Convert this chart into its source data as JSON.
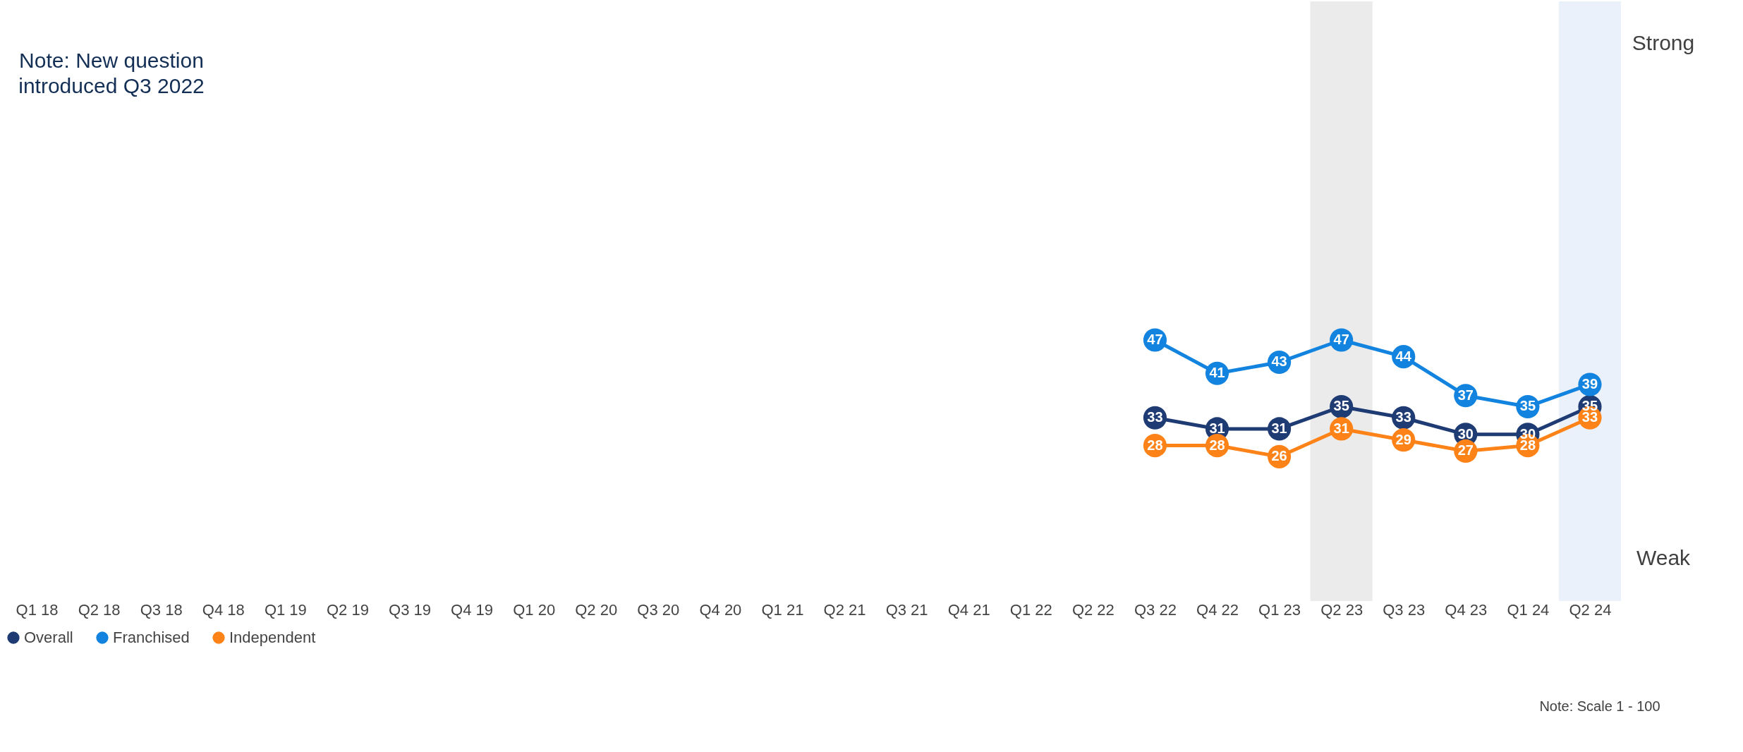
{
  "chart_data": {
    "type": "line",
    "categories": [
      "Q1 18",
      "Q2 18",
      "Q3 18",
      "Q4 18",
      "Q1 19",
      "Q2 19",
      "Q3 19",
      "Q4 19",
      "Q1 20",
      "Q2 20",
      "Q3 20",
      "Q4 20",
      "Q1 21",
      "Q2 21",
      "Q3 21",
      "Q4 21",
      "Q1 22",
      "Q2 22",
      "Q3 22",
      "Q4 22",
      "Q1 23",
      "Q2 23",
      "Q3 23",
      "Q4 23",
      "Q1 24",
      "Q2 24"
    ],
    "series": [
      {
        "name": "Overall",
        "color": "#1f3b73",
        "values": [
          null,
          null,
          null,
          null,
          null,
          null,
          null,
          null,
          null,
          null,
          null,
          null,
          null,
          null,
          null,
          null,
          null,
          null,
          33,
          31,
          31,
          35,
          33,
          30,
          30,
          35
        ]
      },
      {
        "name": "Franchised",
        "color": "#1283de",
        "values": [
          null,
          null,
          null,
          null,
          null,
          null,
          null,
          null,
          null,
          null,
          null,
          null,
          null,
          null,
          null,
          null,
          null,
          null,
          47,
          41,
          43,
          47,
          44,
          37,
          35,
          39
        ]
      },
      {
        "name": "Independent",
        "color": "#fd8319",
        "values": [
          null,
          null,
          null,
          null,
          null,
          null,
          null,
          null,
          null,
          null,
          null,
          null,
          null,
          null,
          null,
          null,
          null,
          null,
          28,
          28,
          26,
          31,
          29,
          27,
          28,
          33
        ]
      }
    ],
    "tick_labels": "x",
    "grid": false,
    "legend": "bottom",
    "marker": "circle",
    "line_style": "solid",
    "data_labels": true,
    "bands": [
      {
        "axis": "x",
        "from": "Q2 23",
        "to": "Q2 23",
        "color": "#ebebeb"
      },
      {
        "axis": "x",
        "from": "Q2 24",
        "to": "Q2 24",
        "color": "#eaf1fa"
      }
    ],
    "annotations": [
      "Note: New question\nintroduced Q3 2022",
      "Strong",
      "Weak",
      "Note: Scale 1 - 100"
    ]
  }
}
